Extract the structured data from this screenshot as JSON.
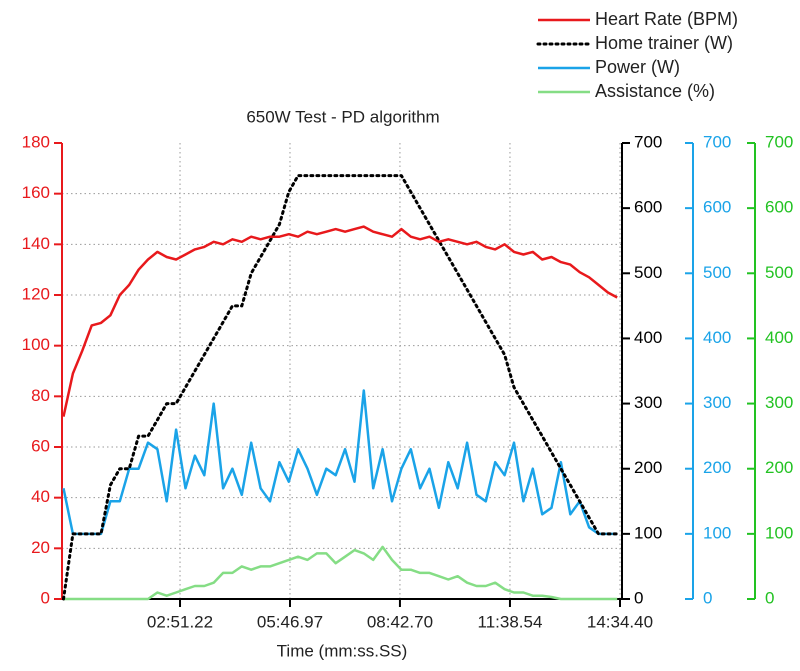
{
  "chart_data": {
    "type": "line",
    "title": "650W Test - PD algorithm",
    "x_label": "Time (mm:ss.SS)",
    "x": [
      -15,
      0,
      15,
      30,
      45,
      60,
      75,
      90,
      105,
      120,
      135,
      150,
      165,
      180,
      195,
      210,
      225,
      240,
      255,
      270,
      285,
      300,
      315,
      330,
      345,
      360,
      375,
      390,
      405,
      420,
      435,
      450,
      465,
      480,
      495,
      510,
      525,
      540,
      555,
      570,
      585,
      600,
      615,
      630,
      645,
      660,
      675,
      690,
      705,
      720,
      735,
      750,
      765,
      780,
      795,
      810,
      825,
      840,
      855,
      870
    ],
    "xlim": [
      -17.4,
      877.6
    ],
    "xticks": [
      {
        "value": 171.22,
        "label": "02:51.22"
      },
      {
        "value": 346.97,
        "label": "05:46.97"
      },
      {
        "value": 522.7,
        "label": "08:42.70"
      },
      {
        "value": 698.54,
        "label": "11:38.54"
      },
      {
        "value": 874.4,
        "label": "14:34.40"
      }
    ],
    "ylim": [
      0,
      180
    ],
    "yticks": [
      0,
      20,
      40,
      60,
      80,
      100,
      120,
      140,
      160,
      180
    ],
    "y2lim": [
      0,
      700
    ],
    "y2ticks": [
      0,
      100,
      200,
      300,
      400,
      500,
      600,
      700
    ],
    "y3lim": [
      0,
      700
    ],
    "y3ticks": [
      0,
      100,
      200,
      300,
      400,
      500,
      600,
      700
    ],
    "y4lim": [
      0,
      700
    ],
    "y4ticks": [
      0,
      100,
      200,
      300,
      400,
      500,
      600,
      700
    ],
    "axis_colors": {
      "y": "#e8191c",
      "y2": "#000000",
      "y3": "#1aa3e8",
      "y4": "#22c222"
    },
    "grid": true,
    "legend": "top-right",
    "series": [
      {
        "name": "Heart Rate (BPM)",
        "color": "#e8191c",
        "axis": "y",
        "style": "solid",
        "values": [
          72,
          89,
          98,
          108,
          109,
          112,
          120,
          124,
          130,
          134,
          137,
          135,
          134,
          136,
          138,
          139,
          141,
          140,
          142,
          141,
          143,
          142,
          143,
          143,
          144,
          143,
          145,
          144,
          145,
          146,
          145,
          146,
          147,
          145,
          144,
          143,
          146,
          143,
          142,
          143,
          141,
          142,
          141,
          140,
          141,
          139,
          138,
          140,
          137,
          136,
          137,
          134,
          135,
          133,
          132,
          129,
          127,
          124,
          121,
          119
        ]
      },
      {
        "name": "Home trainer (W)",
        "color": "#000000",
        "axis": "y2",
        "style": "dotted",
        "values": [
          0,
          100,
          100,
          100,
          100,
          175,
          200,
          200,
          250,
          250,
          275,
          300,
          300,
          325,
          350,
          375,
          400,
          425,
          450,
          450,
          500,
          525,
          550,
          575,
          625,
          650,
          650,
          650,
          650,
          650,
          650,
          650,
          650,
          650,
          650,
          650,
          650,
          625,
          600,
          575,
          550,
          525,
          500,
          475,
          450,
          425,
          400,
          375,
          325,
          300,
          275,
          250,
          225,
          200,
          175,
          150,
          125,
          100,
          100,
          100
        ]
      },
      {
        "name": "Power (W)",
        "color": "#1aa3e8",
        "axis": "y3",
        "style": "solid",
        "values": [
          170,
          100,
          100,
          100,
          100,
          150,
          150,
          200,
          200,
          240,
          230,
          150,
          260,
          170,
          220,
          190,
          300,
          170,
          200,
          160,
          240,
          170,
          150,
          210,
          180,
          230,
          200,
          160,
          200,
          190,
          230,
          180,
          320,
          170,
          230,
          150,
          200,
          230,
          170,
          200,
          140,
          210,
          170,
          240,
          160,
          150,
          210,
          190,
          240,
          150,
          200,
          130,
          140,
          210,
          130,
          150,
          110,
          100,
          100,
          100
        ]
      },
      {
        "name": "Assistance (%)",
        "color": "#85dd85",
        "axis": "y4",
        "style": "solid",
        "values": [
          0,
          0,
          0,
          0,
          0,
          0,
          0,
          0,
          0,
          0,
          10,
          5,
          10,
          15,
          20,
          20,
          25,
          40,
          40,
          50,
          45,
          50,
          50,
          55,
          60,
          65,
          60,
          70,
          70,
          55,
          65,
          75,
          70,
          60,
          80,
          60,
          45,
          45,
          40,
          40,
          35,
          30,
          35,
          25,
          20,
          20,
          25,
          15,
          10,
          10,
          5,
          5,
          3,
          0,
          0,
          0,
          0,
          0,
          0,
          0
        ]
      }
    ]
  }
}
